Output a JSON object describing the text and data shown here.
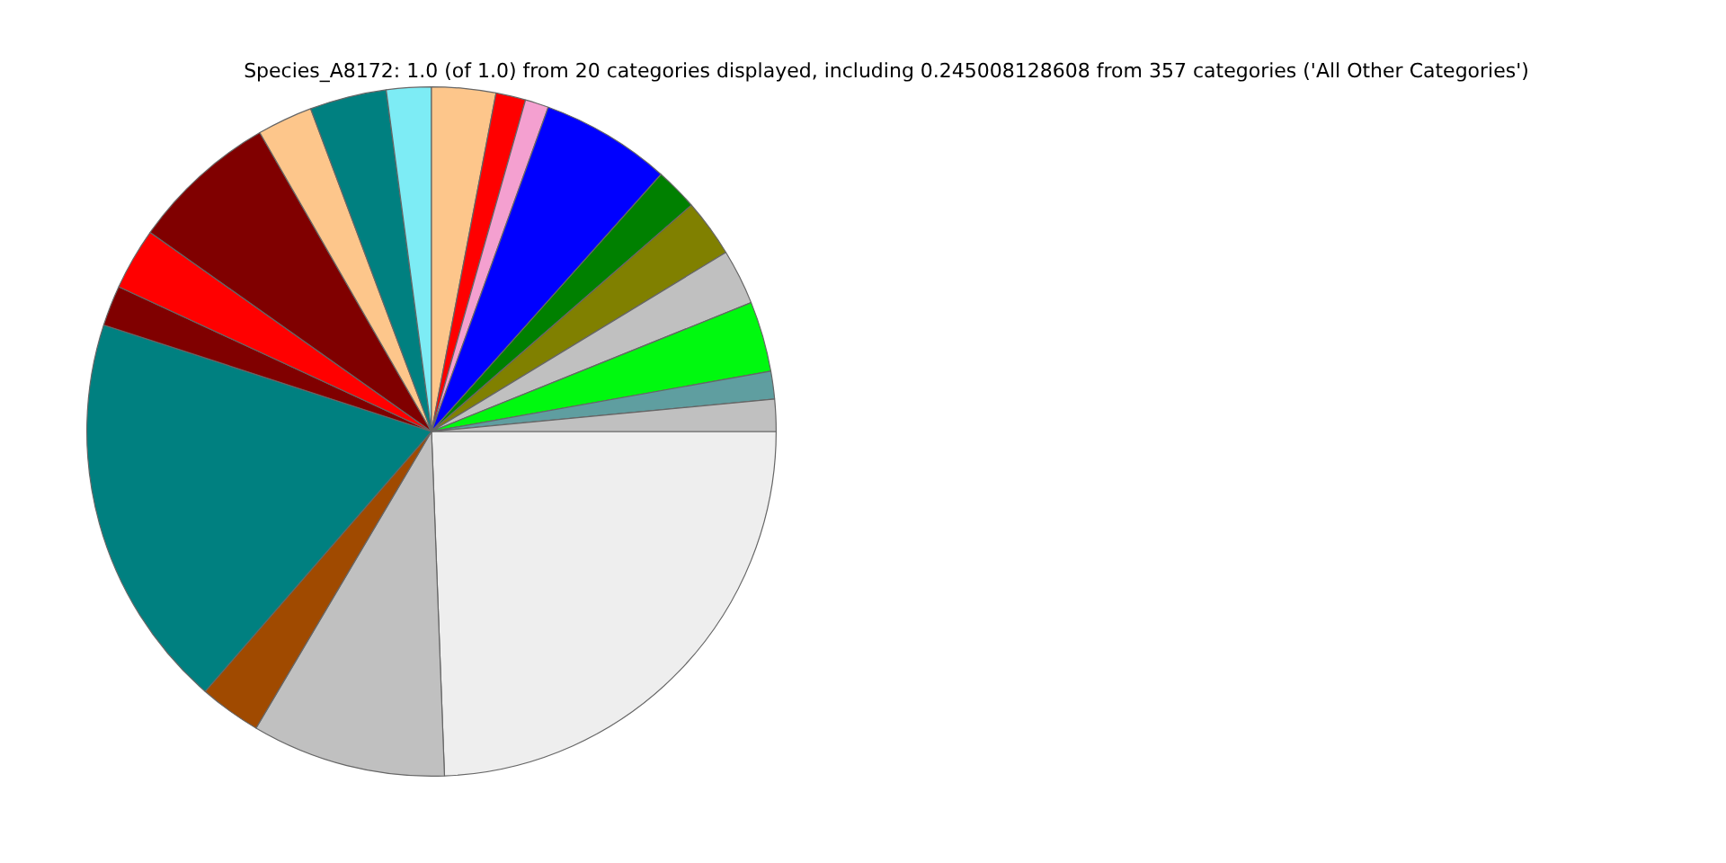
{
  "chart_data": {
    "type": "pie",
    "title": "Species_A8172: 1.0 (of 1.0) from 20 categories displayed, including 0.245008128608 from 357 categories ('All Other Categories')",
    "categories": [
      null,
      null,
      null,
      null,
      null,
      null,
      null,
      null,
      null,
      null,
      null,
      null,
      null,
      null,
      null,
      null,
      null,
      null,
      null,
      null
    ],
    "values": [
      1.5,
      1.3,
      3.3,
      2.6,
      2.7,
      2.0,
      6.1,
      1.1,
      1.4,
      3.0,
      2.1,
      3.6,
      2.6,
      6.9,
      2.9,
      1.9,
      18.6,
      2.9,
      9.1,
      24.4
    ],
    "colors": [
      "#c0c0c0",
      "#5f9ea0",
      "#00f90f",
      "#c0c0c0",
      "#808000",
      "#008000",
      "#0000ff",
      "#f4a0d0",
      "#ff0000",
      "#fdc68b",
      "#7decf5",
      "#008080",
      "#fdc68b",
      "#800000",
      "#ff0000",
      "#800000",
      "#008080",
      "#a04a00",
      "#c0c0c0",
      "#eeeeee"
    ]
  }
}
